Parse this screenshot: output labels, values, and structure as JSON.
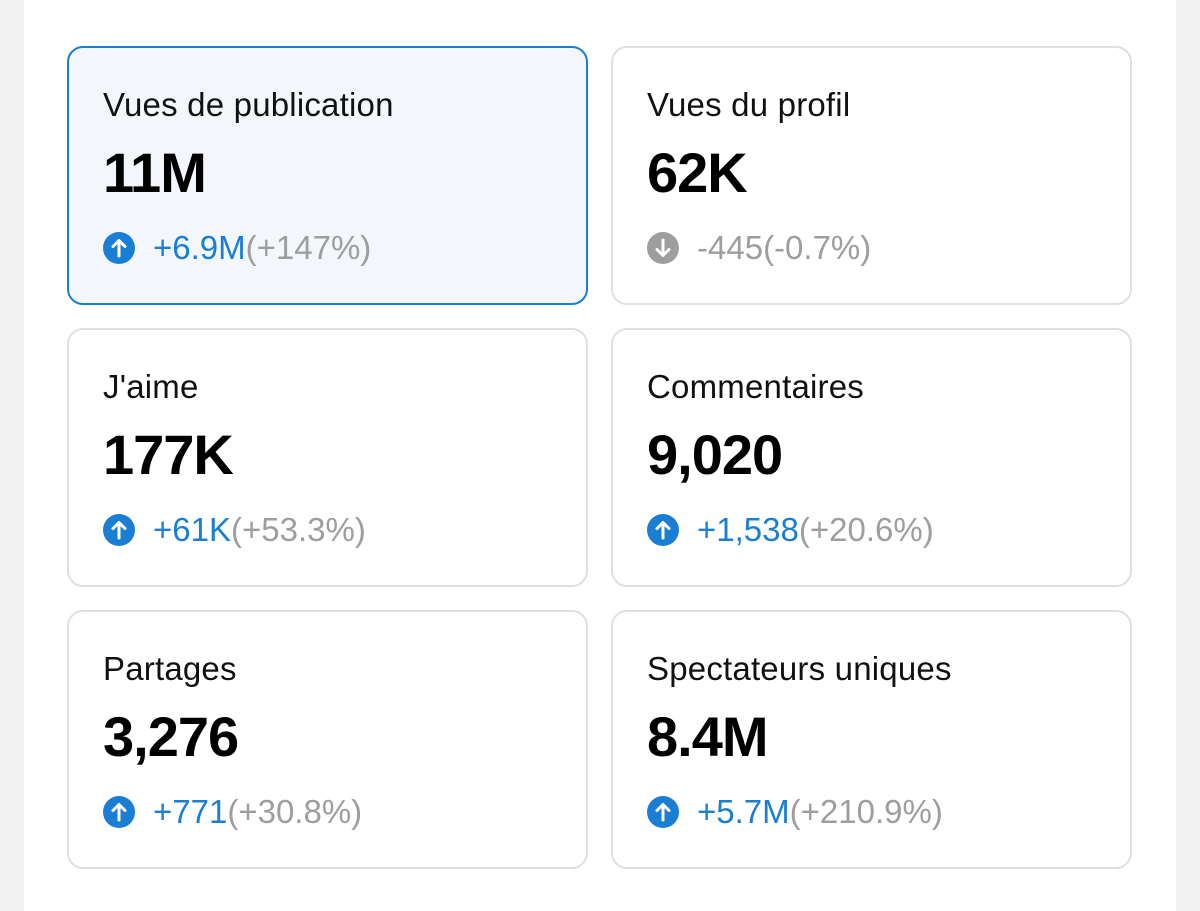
{
  "colors": {
    "accent": "#1a7ed4",
    "muted": "#9e9e9e",
    "selected_bg": "#f3f7fc",
    "border": "#e0e0e0"
  },
  "metrics": [
    {
      "label": "Vues de publication",
      "value": "11M",
      "change": "+6.9M",
      "percent": "(+147%)",
      "direction": "up",
      "icon": "arrow-up-circle-icon",
      "selected": true
    },
    {
      "label": "Vues du profil",
      "value": "62K",
      "change": "-445",
      "percent": "(-0.7%)",
      "direction": "down",
      "icon": "arrow-down-circle-icon",
      "selected": false
    },
    {
      "label": "J'aime",
      "value": "177K",
      "change": "+61K",
      "percent": "(+53.3%)",
      "direction": "up",
      "icon": "arrow-up-circle-icon",
      "selected": false
    },
    {
      "label": "Commentaires",
      "value": "9,020",
      "change": "+1,538",
      "percent": "(+20.6%)",
      "direction": "up",
      "icon": "arrow-up-circle-icon",
      "selected": false
    },
    {
      "label": "Partages",
      "value": "3,276",
      "change": "+771",
      "percent": "(+30.8%)",
      "direction": "up",
      "icon": "arrow-up-circle-icon",
      "selected": false
    },
    {
      "label": "Spectateurs uniques",
      "value": "8.4M",
      "change": "+5.7M",
      "percent": "(+210.9%)",
      "direction": "up",
      "icon": "arrow-up-circle-icon",
      "selected": false
    }
  ]
}
